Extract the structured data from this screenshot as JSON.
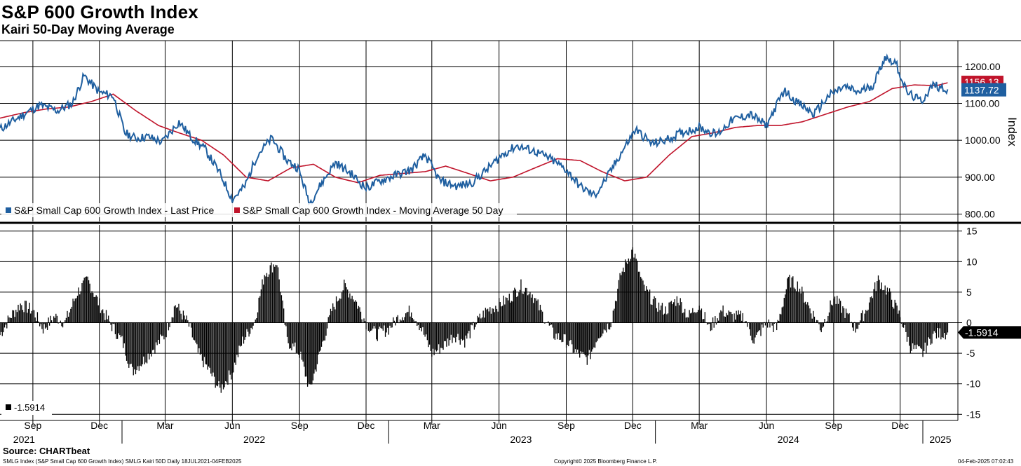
{
  "header": {
    "title": "S&P 600 Growth Index",
    "subtitle": "Kairi 50-Day Moving Average"
  },
  "colors": {
    "price": "#1f5fa0",
    "ma": "#c0142b",
    "kairi": "#000000",
    "grid": "#000000"
  },
  "chart_data": [
    {
      "type": "line",
      "panel": "top",
      "ylabel": "Index",
      "ylim": [
        780,
        1270
      ],
      "yticks": [
        "1200.00",
        "1100.00",
        "1000.00",
        "900.00",
        "800.00"
      ],
      "legend": [
        "S&P Small Cap 600 Growth Index - Last Price",
        "S&P Small Cap 600 Growth Index - Moving Average 50 Day"
      ],
      "last_labels": {
        "ma": "1156.13",
        "price": "1137.72"
      },
      "series": [
        {
          "name": "S&P Small Cap 600 Growth Index - Last Price",
          "x": [
            "2021-07-18",
            "2021-08-15",
            "2021-09-10",
            "2021-10-05",
            "2021-10-25",
            "2021-11-10",
            "2021-12-01",
            "2021-12-20",
            "2022-01-05",
            "2022-01-20",
            "2022-02-05",
            "2022-02-25",
            "2022-03-20",
            "2022-04-05",
            "2022-04-25",
            "2022-05-15",
            "2022-06-01",
            "2022-06-18",
            "2022-07-05",
            "2022-07-25",
            "2022-08-15",
            "2022-08-30",
            "2022-09-15",
            "2022-09-30",
            "2022-10-20",
            "2022-11-10",
            "2022-12-01",
            "2022-12-20",
            "2023-01-10",
            "2023-02-01",
            "2023-02-20",
            "2023-03-12",
            "2023-04-05",
            "2023-04-25",
            "2023-05-15",
            "2023-06-05",
            "2023-06-25",
            "2023-07-20",
            "2023-08-10",
            "2023-09-01",
            "2023-09-20",
            "2023-10-10",
            "2023-10-27",
            "2023-11-15",
            "2023-12-05",
            "2023-12-27",
            "2024-01-15",
            "2024-02-05",
            "2024-03-01",
            "2024-03-25",
            "2024-04-15",
            "2024-05-10",
            "2024-06-01",
            "2024-06-25",
            "2024-07-15",
            "2024-08-05",
            "2024-08-25",
            "2024-09-15",
            "2024-10-05",
            "2024-10-25",
            "2024-11-10",
            "2024-11-25",
            "2024-12-10",
            "2024-12-30",
            "2025-01-15",
            "2025-02-04"
          ],
          "values": [
            1030,
            1065,
            1095,
            1080,
            1100,
            1175,
            1130,
            1120,
            1020,
            1005,
            1010,
            995,
            1050,
            1010,
            975,
            910,
            840,
            875,
            960,
            1005,
            945,
            925,
            830,
            880,
            940,
            910,
            870,
            890,
            905,
            920,
            960,
            890,
            875,
            885,
            920,
            960,
            985,
            970,
            950,
            920,
            875,
            850,
            900,
            965,
            1030,
            990,
            1000,
            1020,
            1035,
            1015,
            1055,
            1070,
            1040,
            1135,
            1100,
            1070,
            1120,
            1145,
            1130,
            1150,
            1225,
            1210,
            1130,
            1105,
            1150,
            1138
          ]
        },
        {
          "name": "S&P Small Cap 600 Growth Index - Moving Average 50 Day",
          "x": [
            "2021-07-18",
            "2021-08-20",
            "2021-09-20",
            "2021-10-20",
            "2021-11-20",
            "2021-12-20",
            "2022-01-20",
            "2022-02-20",
            "2022-03-20",
            "2022-04-20",
            "2022-05-20",
            "2022-06-20",
            "2022-07-20",
            "2022-08-20",
            "2022-09-20",
            "2022-10-20",
            "2022-11-20",
            "2022-12-20",
            "2023-01-20",
            "2023-02-20",
            "2023-03-20",
            "2023-04-20",
            "2023-05-20",
            "2023-06-20",
            "2023-07-20",
            "2023-08-20",
            "2023-09-20",
            "2023-10-20",
            "2023-11-20",
            "2023-12-20",
            "2024-01-20",
            "2024-02-20",
            "2024-03-20",
            "2024-04-20",
            "2024-05-20",
            "2024-06-20",
            "2024-07-20",
            "2024-08-20",
            "2024-09-20",
            "2024-10-20",
            "2024-11-20",
            "2024-12-20",
            "2025-01-20",
            "2025-02-04"
          ],
          "values": [
            1060,
            1075,
            1085,
            1090,
            1105,
            1125,
            1080,
            1040,
            1020,
            1000,
            960,
            900,
            890,
            925,
            935,
            900,
            885,
            905,
            910,
            915,
            930,
            910,
            890,
            900,
            925,
            950,
            945,
            915,
            890,
            900,
            960,
            1010,
            1020,
            1035,
            1040,
            1040,
            1050,
            1070,
            1090,
            1105,
            1140,
            1150,
            1148,
            1156
          ]
        }
      ]
    },
    {
      "type": "bar",
      "panel": "bottom",
      "name": "SMLG Kairi 50D",
      "ylim": [
        -16,
        16
      ],
      "yticks": [
        "15",
        "10",
        "5",
        "0",
        "-5",
        "-10",
        "-15"
      ],
      "last_label": "-1.5914",
      "legend": [
        "-1.5914"
      ],
      "x": [
        "2021-07-18",
        "2021-08-01",
        "2021-08-15",
        "2021-09-01",
        "2021-09-15",
        "2021-10-01",
        "2021-10-15",
        "2021-11-01",
        "2021-11-15",
        "2021-12-01",
        "2021-12-15",
        "2022-01-01",
        "2022-01-15",
        "2022-02-01",
        "2022-02-15",
        "2022-03-01",
        "2022-03-15",
        "2022-04-01",
        "2022-04-15",
        "2022-05-01",
        "2022-05-15",
        "2022-06-01",
        "2022-06-15",
        "2022-07-01",
        "2022-07-15",
        "2022-08-01",
        "2022-08-15",
        "2022-09-01",
        "2022-09-15",
        "2022-10-01",
        "2022-10-15",
        "2022-11-01",
        "2022-11-15",
        "2022-12-01",
        "2022-12-15",
        "2023-01-01",
        "2023-01-15",
        "2023-02-01",
        "2023-02-15",
        "2023-03-01",
        "2023-03-15",
        "2023-04-01",
        "2023-04-15",
        "2023-05-01",
        "2023-05-15",
        "2023-06-01",
        "2023-06-15",
        "2023-07-01",
        "2023-07-15",
        "2023-08-01",
        "2023-08-15",
        "2023-09-01",
        "2023-09-15",
        "2023-10-01",
        "2023-10-15",
        "2023-11-01",
        "2023-11-15",
        "2023-12-01",
        "2023-12-15",
        "2024-01-01",
        "2024-01-15",
        "2024-02-01",
        "2024-02-15",
        "2024-03-01",
        "2024-03-15",
        "2024-04-01",
        "2024-04-15",
        "2024-05-01",
        "2024-05-15",
        "2024-06-01",
        "2024-06-15",
        "2024-07-01",
        "2024-07-15",
        "2024-08-01",
        "2024-08-15",
        "2024-09-01",
        "2024-09-15",
        "2024-10-01",
        "2024-10-15",
        "2024-11-01",
        "2024-11-15",
        "2024-12-01",
        "2024-12-15",
        "2025-01-01",
        "2025-01-15",
        "2025-02-04"
      ],
      "values": [
        -2,
        1,
        3,
        2,
        -1,
        1,
        0,
        5,
        7,
        3,
        0,
        -3,
        -8,
        -6,
        -4,
        -2,
        3,
        0,
        -5,
        -8,
        -11,
        -8,
        -3,
        0,
        8,
        10,
        -3,
        -5,
        -11,
        -4,
        2,
        6,
        4,
        0,
        -2,
        -1,
        1,
        2,
        -1,
        -5,
        -4,
        -2,
        -3,
        0,
        2,
        3,
        4,
        6,
        5,
        1,
        -2,
        -3,
        -5,
        -6,
        -2,
        0,
        8,
        12,
        6,
        3,
        2,
        4,
        1,
        3,
        -1,
        2,
        1,
        1,
        -3,
        0,
        -1,
        7,
        6,
        2,
        -1,
        4,
        2,
        -1,
        2,
        7,
        5,
        1,
        -4,
        -5,
        -2,
        -1.6
      ]
    }
  ],
  "x_axis": {
    "months": [
      "Sep",
      "Dec",
      "Mar",
      "Jun",
      "Sep",
      "Dec",
      "Mar",
      "Jun",
      "Sep",
      "Dec",
      "Mar",
      "Jun",
      "Sep",
      "Dec"
    ],
    "years": [
      "2021",
      "2022",
      "2023",
      "2024",
      "2025"
    ]
  },
  "footer": {
    "source": "Source: CHARTbeat",
    "ticker_info": "SMLG Index (S&P Small Cap 600 Growth Index) SMLG Kairi 50D  Daily 18JUL2021-04FEB2025",
    "copyright": "Copyright© 2025 Bloomberg Finance L.P.",
    "timestamp": "04-Feb-2025 07:02:43"
  }
}
